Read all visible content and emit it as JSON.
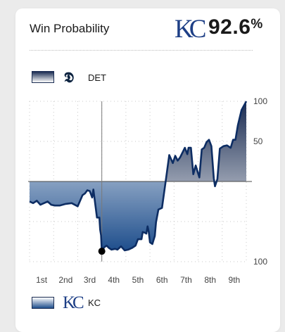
{
  "header": {
    "title": "Win Probability",
    "leader_logo": "KC",
    "leader_pct": "92.6",
    "pct_symbol": "%"
  },
  "legend": {
    "top": {
      "logo_icon": "tigers-d-logo-icon",
      "logo_text": "𝕯",
      "team": "DET"
    },
    "bottom": {
      "logo_icon": "royals-kc-logo-icon",
      "logo_text": "KC",
      "team": "KC"
    }
  },
  "colors": {
    "line": "#0d2d63",
    "home_fill": "#1e4e8c",
    "away_fill": "#1a2c52",
    "marker": "#000000"
  },
  "chart_data": {
    "type": "area",
    "title": "Win Probability",
    "x_label_positions": [
      1,
      2,
      3,
      4,
      5,
      6,
      7,
      8,
      9
    ],
    "x_tick_labels": [
      "1st",
      "2nd",
      "3rd",
      "4th",
      "5th",
      "6th",
      "7th",
      "8th",
      "9th"
    ],
    "y_tick_labels": [
      {
        "value": 100,
        "label": "100"
      },
      {
        "value": 50,
        "label": "50"
      },
      {
        "value": -100,
        "label": "100"
      }
    ],
    "xlim": [
      0.5,
      9.5
    ],
    "ylim": [
      -100,
      100
    ],
    "midline": 0,
    "current_inning_marker_x": 3.5,
    "highlight_point": {
      "x": 3.5,
      "y": -87
    },
    "series": [
      {
        "x": [
          0.5,
          0.65,
          0.8,
          0.95,
          1.1,
          1.25,
          1.4,
          1.55,
          1.75,
          2.0,
          2.25,
          2.5,
          2.7,
          2.8,
          2.9,
          3.0,
          3.1,
          3.15,
          3.3,
          3.4,
          3.43,
          3.47,
          3.5,
          3.6,
          3.7,
          3.8,
          3.9,
          4.05,
          4.15,
          4.3,
          4.45,
          4.6,
          4.75,
          4.9,
          5.0,
          5.15,
          5.2,
          5.3,
          5.35,
          5.4,
          5.45,
          5.5,
          5.6,
          5.7,
          5.75,
          5.85,
          6.0,
          6.15,
          6.3,
          6.45,
          6.55,
          6.65,
          6.75,
          6.85,
          6.95,
          7.05,
          7.1,
          7.2,
          7.3,
          7.4,
          7.55,
          7.65,
          7.75,
          7.85,
          7.95,
          8.05,
          8.15,
          8.2,
          8.3,
          8.4,
          8.55,
          8.7,
          8.85,
          8.95,
          9.05,
          9.15,
          9.3,
          9.5
        ],
        "y": [
          -25,
          -27,
          -24,
          -29,
          -27,
          -25,
          -29,
          -30,
          -30,
          -28,
          -27,
          -31,
          -17,
          -15,
          -11,
          -12,
          -20,
          -10,
          -45,
          -45,
          -60,
          -67,
          -87,
          -82,
          -80,
          -83,
          -85,
          -84,
          -85,
          -81,
          -86,
          -85,
          -83,
          -80,
          -72,
          -72,
          -63,
          -64,
          -65,
          -56,
          -63,
          -76,
          -78,
          -68,
          -51,
          -35,
          -33,
          0,
          33,
          23,
          32,
          26,
          30,
          36,
          42,
          34,
          42,
          42,
          9,
          20,
          5,
          40,
          42,
          49,
          52,
          44,
          4,
          -6,
          3,
          41,
          44,
          45,
          42,
          52,
          52,
          70,
          89,
          100
        ]
      }
    ],
    "grid": true,
    "legend_position": "top-left and bottom-left"
  }
}
